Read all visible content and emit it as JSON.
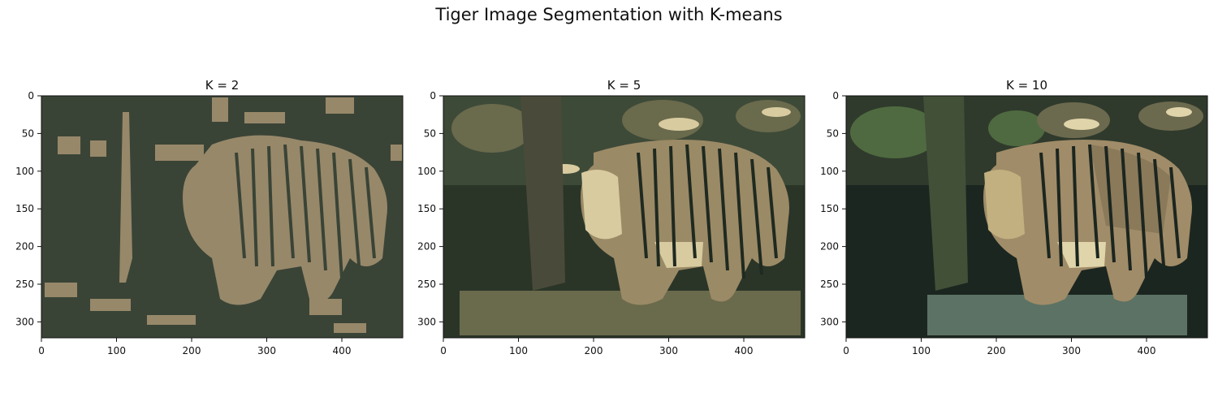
{
  "figure": {
    "title": "Tiger Image Segmentation with K-means"
  },
  "axes_common": {
    "x_ticks": [
      "0",
      "100",
      "200",
      "300",
      "400"
    ],
    "y_ticks": [
      "0",
      "50",
      "100",
      "150",
      "200",
      "250",
      "300"
    ],
    "x_range": [
      0,
      481
    ],
    "y_range": [
      0,
      321
    ]
  },
  "panels": [
    {
      "title": "K = 2",
      "palette": [
        "#3a4436",
        "#97886a"
      ]
    },
    {
      "title": "K = 5",
      "palette": [
        "#1f2a20",
        "#3e4a38",
        "#6a6a4c",
        "#9b8a66",
        "#d8cba0"
      ]
    },
    {
      "title": "K = 10",
      "palette": [
        "#1c2620",
        "#2f3a2c",
        "#425038",
        "#4f6a40",
        "#6c6a4e",
        "#8a7a5a",
        "#a08c68",
        "#c2b080",
        "#e0d4aa",
        "#5c7264"
      ]
    }
  ]
}
